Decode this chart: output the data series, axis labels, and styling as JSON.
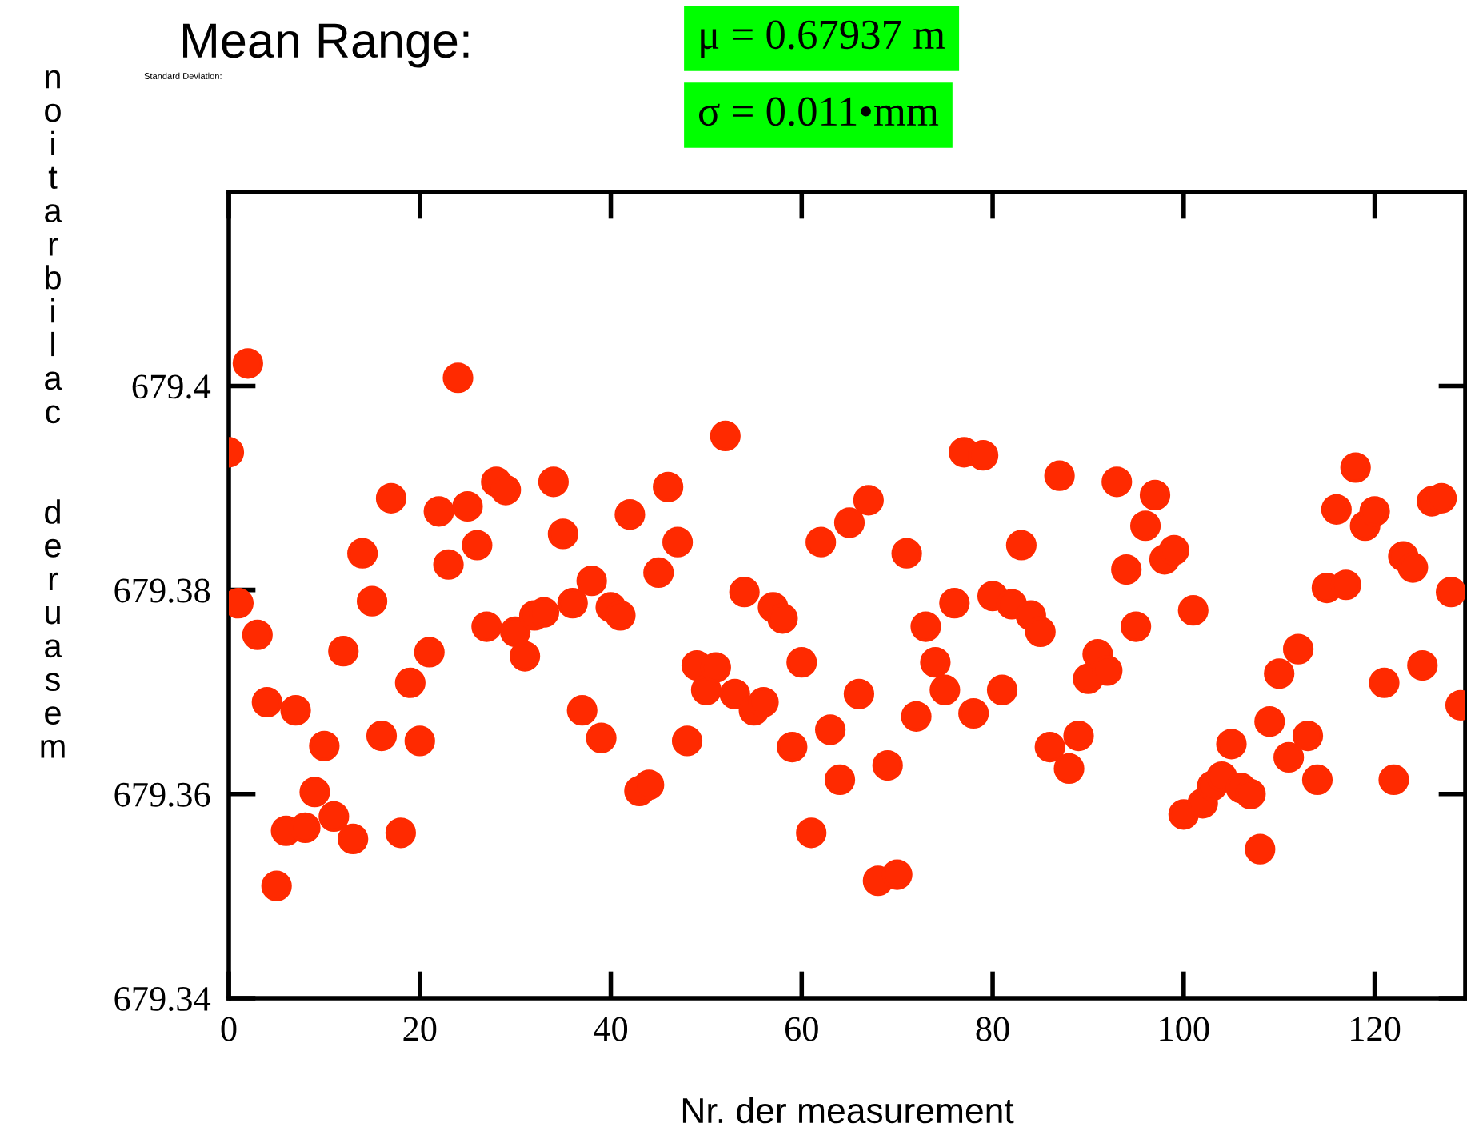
{
  "chart_data": {
    "type": "scatter",
    "xlabel": "Nr. der measurement",
    "ylabel": "noitarbilac  deruasem",
    "annotations": [
      "Mean Range:",
      "Standard Deviation:",
      "μ = 0.67937 m",
      "σ = 0.011•mm"
    ],
    "marker": "circle",
    "grid": false,
    "xlim": [
      0,
      129.5
    ],
    "xticks": [
      0,
      20,
      40,
      60,
      80,
      100,
      120
    ],
    "ylim": [
      679.34,
      679.419
    ],
    "yticks": [
      679.34,
      679.36,
      679.38,
      679.4
    ],
    "series": [
      {
        "color": "#ff2a00",
        "x": [
          0,
          1,
          2,
          3,
          4,
          5,
          6,
          7,
          8,
          9,
          10,
          11,
          12,
          13,
          14,
          15,
          16,
          17,
          18,
          19,
          20,
          21,
          22,
          23,
          24,
          25,
          26,
          27,
          28,
          29,
          30,
          31,
          32,
          33,
          34,
          35,
          36,
          37,
          38,
          39,
          40,
          41,
          42,
          43,
          44,
          45,
          46,
          47,
          48,
          49,
          50,
          51,
          52,
          53,
          54,
          55,
          56,
          57,
          58,
          59,
          60,
          61,
          62,
          63,
          64,
          65,
          66,
          67,
          68,
          69,
          70,
          71,
          72,
          73,
          74,
          75,
          76,
          77,
          78,
          79,
          80,
          81,
          82,
          83,
          84,
          85,
          86,
          87,
          88,
          89,
          90,
          91,
          92,
          93,
          94,
          95,
          96,
          97,
          98,
          99,
          100,
          101,
          102,
          103,
          104,
          105,
          106,
          107,
          108,
          109,
          110,
          111,
          112,
          113,
          114,
          115,
          116,
          117,
          118,
          119,
          120,
          121,
          122,
          123,
          124,
          125,
          126,
          127,
          128,
          129
        ],
        "values": [
          679.3935,
          679.3787,
          679.4022,
          679.3756,
          679.369,
          679.351,
          679.3564,
          679.3682,
          679.3567,
          679.3602,
          679.3647,
          679.3578,
          679.374,
          679.3556,
          679.3836,
          679.3789,
          679.3657,
          679.389,
          679.3562,
          679.3709,
          679.3652,
          679.3739,
          679.3877,
          679.3825,
          679.4008,
          679.3882,
          679.3844,
          679.3764,
          679.3906,
          679.3898,
          679.3759,
          679.3735,
          679.3775,
          679.3778,
          679.3906,
          679.3855,
          679.3787,
          679.3682,
          679.3809,
          679.3655,
          679.3783,
          679.3775,
          679.3874,
          679.3603,
          679.3609,
          679.3817,
          679.3901,
          679.3847,
          679.3652,
          679.3726,
          679.3702,
          679.3724,
          679.3951,
          679.3698,
          679.3798,
          679.3682,
          679.369,
          679.3783,
          679.3772,
          679.3646,
          679.3729,
          679.3562,
          679.3847,
          679.3663,
          679.3614,
          679.3866,
          679.3698,
          679.3888,
          679.3515,
          679.3628,
          679.3521,
          679.3836,
          679.3676,
          679.3764,
          679.3729,
          679.3702,
          679.3787,
          679.3935,
          679.3679,
          679.3932,
          679.3794,
          679.3702,
          679.3786,
          679.3844,
          679.3775,
          679.3759,
          679.3646,
          679.3912,
          679.3625,
          679.3657,
          679.3713,
          679.3737,
          679.3721,
          679.3906,
          679.382,
          679.3764,
          679.3863,
          679.3893,
          679.383,
          679.3839,
          679.358,
          679.378,
          679.3591,
          679.3608,
          679.3617,
          679.3649,
          679.3606,
          679.36,
          679.3546,
          679.3671,
          679.3718,
          679.3636,
          679.3742,
          679.3657,
          679.3614,
          679.3802,
          679.3879,
          679.3805,
          679.392,
          679.3863,
          679.3877,
          679.3709,
          679.3614,
          679.3833,
          679.3822,
          679.3726,
          679.3887,
          679.389,
          679.3798,
          679.3687
        ]
      }
    ]
  }
}
